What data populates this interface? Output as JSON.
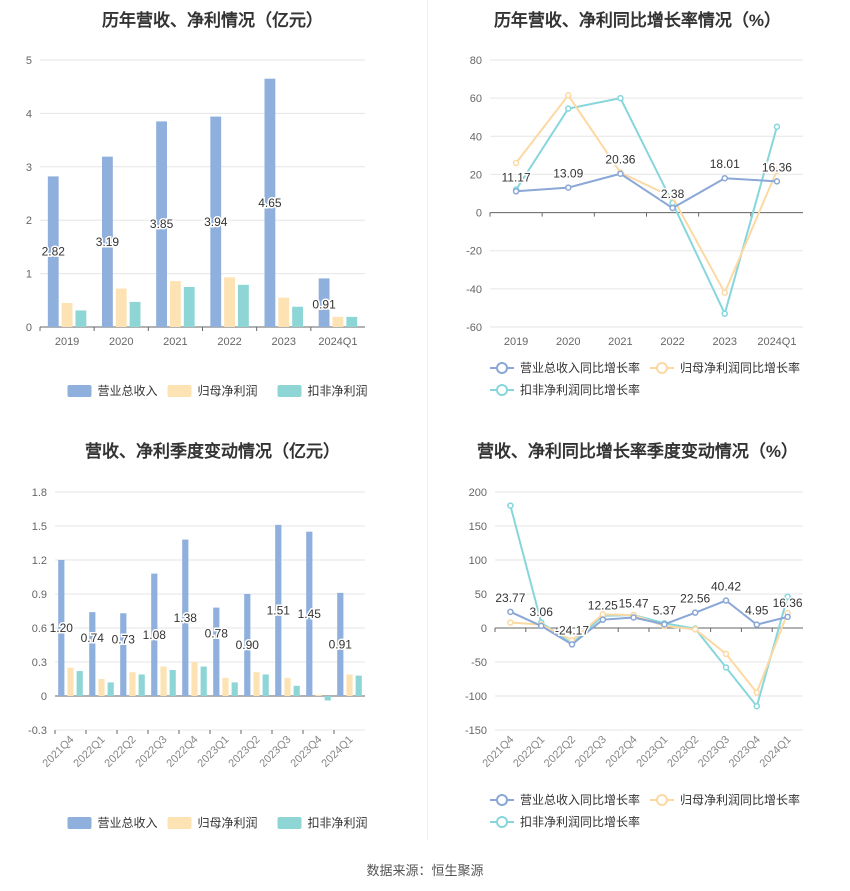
{
  "footer": "数据来源：恒生聚源",
  "charts": [
    {
      "id": "annual-revenue-profit",
      "title": "历年营收、净利情况（亿元）",
      "type": "bar",
      "categories": [
        "2019",
        "2020",
        "2021",
        "2022",
        "2023",
        "2024Q1"
      ],
      "ylim": [
        0,
        5
      ],
      "yticks": [
        0,
        1,
        2,
        3,
        4,
        5
      ],
      "series": [
        {
          "name": "营业总收入",
          "color": "#8fafdc",
          "values": [
            2.82,
            3.19,
            3.85,
            3.94,
            4.65,
            0.91
          ]
        },
        {
          "name": "归母净利润",
          "color": "#fde2b3",
          "values": [
            0.45,
            0.72,
            0.86,
            0.93,
            0.55,
            0.19
          ]
        },
        {
          "name": "扣非净利润",
          "color": "#8ed6d6",
          "values": [
            0.31,
            0.47,
            0.75,
            0.79,
            0.38,
            0.19
          ]
        }
      ],
      "data_labels": {
        "series": 0,
        "labels": [
          "2.82",
          "3.19",
          "3.85",
          "3.94",
          "4.65",
          "0.91"
        ]
      }
    },
    {
      "id": "annual-growth-rate",
      "title": "历年营收、净利同比增长率情况（%）",
      "type": "line",
      "categories": [
        "2019",
        "2020",
        "2021",
        "2022",
        "2023",
        "2024Q1"
      ],
      "ylim": [
        -60,
        80
      ],
      "yticks": [
        -60,
        -40,
        -20,
        0,
        20,
        40,
        60,
        80
      ],
      "series": [
        {
          "name": "营业总收入同比增长率",
          "color": "#8aa7d6",
          "values": [
            11.17,
            13.09,
            20.36,
            2.38,
            18.01,
            16.36
          ]
        },
        {
          "name": "归母净利润同比增长率",
          "color": "#fcd9a3",
          "values": [
            26,
            61.5,
            21,
            8,
            -42,
            22
          ]
        },
        {
          "name": "扣非净利润同比增长率",
          "color": "#86d6dc",
          "values": [
            12,
            54.5,
            60,
            5,
            -53,
            45
          ]
        }
      ],
      "data_labels": {
        "series": 0,
        "labels": [
          "11.17",
          "13.09",
          "20.36",
          "2.38",
          "18.01",
          "16.36"
        ]
      }
    },
    {
      "id": "quarterly-revenue-profit",
      "title": "营收、净利季度变动情况（亿元）",
      "type": "bar",
      "categories": [
        "2021Q4",
        "2022Q1",
        "2022Q2",
        "2022Q3",
        "2022Q4",
        "2023Q1",
        "2023Q2",
        "2023Q3",
        "2023Q4",
        "2024Q1"
      ],
      "ylim": [
        -0.3,
        1.8
      ],
      "yticks": [
        -0.3,
        0,
        0.3,
        0.6,
        0.9,
        1.2,
        1.5,
        1.8
      ],
      "ytick_labels": [
        "-0.3",
        "0",
        "0.3",
        "0.6",
        "0.9",
        "1.2",
        "1.5",
        "1.8"
      ],
      "series": [
        {
          "name": "营业总收入",
          "color": "#8fafdc",
          "values": [
            1.2,
            0.74,
            0.73,
            1.08,
            1.38,
            0.78,
            0.9,
            1.51,
            1.45,
            0.91
          ]
        },
        {
          "name": "归母净利润",
          "color": "#fde2b3",
          "values": [
            0.25,
            0.15,
            0.21,
            0.26,
            0.3,
            0.16,
            0.21,
            0.16,
            0.01,
            0.19
          ]
        },
        {
          "name": "扣非净利润",
          "color": "#8ed6d6",
          "values": [
            0.22,
            0.12,
            0.19,
            0.23,
            0.26,
            0.12,
            0.19,
            0.09,
            -0.04,
            0.18
          ]
        }
      ],
      "data_labels": {
        "series": 0,
        "labels": [
          "1.20",
          "0.74",
          "0.73",
          "1.08",
          "1.38",
          "0.78",
          "0.90",
          "1.51",
          "1.45",
          "0.91"
        ]
      }
    },
    {
      "id": "quarterly-growth-rate",
      "title": "营收、净利同比增长率季度变动情况（%）",
      "type": "line",
      "categories": [
        "2021Q4",
        "2022Q1",
        "2022Q2",
        "2022Q3",
        "2022Q4",
        "2023Q1",
        "2023Q2",
        "2023Q3",
        "2023Q4",
        "2024Q1"
      ],
      "ylim": [
        -150,
        200
      ],
      "yticks": [
        -150,
        -100,
        -50,
        0,
        50,
        100,
        150,
        200
      ],
      "series": [
        {
          "name": "营业总收入同比增长率",
          "color": "#8aa7d6",
          "values": [
            23.77,
            3.06,
            -24.17,
            12.25,
            15.47,
            5.37,
            22.56,
            40.42,
            4.95,
            16.36
          ]
        },
        {
          "name": "归母净利润同比增长率",
          "color": "#fcd9a3",
          "values": [
            8,
            5,
            -18,
            20,
            19,
            3,
            -2,
            -38,
            -95,
            22
          ]
        },
        {
          "name": "扣非净利润同比增长率",
          "color": "#86d6dc",
          "values": [
            180,
            8,
            -23,
            18,
            19,
            7,
            -1,
            -58,
            -115,
            46
          ]
        }
      ],
      "data_labels": {
        "series": 0,
        "labels": [
          "23.77",
          "3.06",
          "-24.17",
          "12.25",
          "15.47",
          "5.37",
          "22.56",
          "40.42",
          "4.95",
          "16.36"
        ]
      }
    }
  ]
}
